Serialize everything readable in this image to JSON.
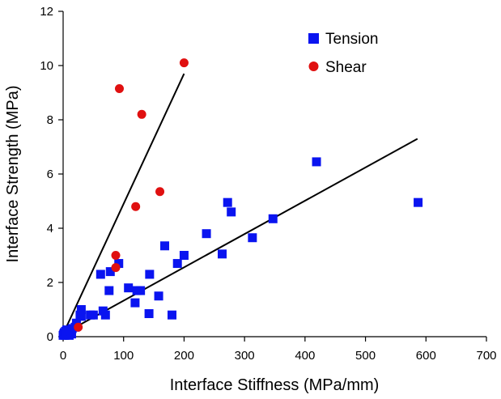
{
  "chart_data": {
    "type": "scatter",
    "title": "",
    "xlabel": "Interface Stiffness (MPa/mm)",
    "ylabel": "Interface Strength (MPa)",
    "xlim": [
      0,
      700
    ],
    "ylim": [
      0,
      12
    ],
    "xticks": [
      0,
      100,
      200,
      300,
      400,
      500,
      600,
      700
    ],
    "yticks": [
      0,
      2,
      4,
      6,
      8,
      10,
      12
    ],
    "grid": false,
    "legend_position": "top-right",
    "colors": {
      "tension": "#0a14f0",
      "shear": "#e01010",
      "axis": "#000000",
      "trendline": "#000000"
    },
    "series": [
      {
        "name": "Tension",
        "marker": "square",
        "points": [
          [
            0,
            0.05
          ],
          [
            1,
            0.1
          ],
          [
            2,
            0.15
          ],
          [
            3,
            0.05
          ],
          [
            4,
            0.2
          ],
          [
            5,
            0.1
          ],
          [
            6,
            0.25
          ],
          [
            8,
            0.15
          ],
          [
            10,
            0.05
          ],
          [
            12,
            0.2
          ],
          [
            14,
            0.1
          ],
          [
            15,
            0.3
          ],
          [
            20,
            0.35
          ],
          [
            22,
            0.5
          ],
          [
            28,
            0.8
          ],
          [
            30,
            0.75
          ],
          [
            30,
            1.0
          ],
          [
            45,
            0.8
          ],
          [
            50,
            0.8
          ],
          [
            62,
            2.3
          ],
          [
            66,
            0.95
          ],
          [
            70,
            0.8
          ],
          [
            76,
            1.7
          ],
          [
            78,
            2.4
          ],
          [
            92,
            2.7
          ],
          [
            108,
            1.8
          ],
          [
            119,
            1.25
          ],
          [
            122,
            1.7
          ],
          [
            128,
            1.7
          ],
          [
            142,
            0.85
          ],
          [
            143,
            2.3
          ],
          [
            158,
            1.5
          ],
          [
            168,
            3.35
          ],
          [
            180,
            0.8
          ],
          [
            189,
            2.7
          ],
          [
            200,
            3.0
          ],
          [
            237,
            3.8
          ],
          [
            263,
            3.05
          ],
          [
            272,
            4.95
          ],
          [
            278,
            4.6
          ],
          [
            313,
            3.65
          ],
          [
            347,
            4.35
          ],
          [
            419,
            6.45
          ],
          [
            587,
            4.95
          ]
        ],
        "trendline": {
          "x": [
            0,
            586
          ],
          "y": [
            0.1,
            7.3
          ]
        }
      },
      {
        "name": "Shear",
        "marker": "circle",
        "points": [
          [
            25,
            0.35
          ],
          [
            87,
            3.0
          ],
          [
            87,
            2.55
          ],
          [
            93,
            9.15
          ],
          [
            120,
            4.8
          ],
          [
            130,
            8.2
          ],
          [
            160,
            5.35
          ],
          [
            200,
            10.1
          ]
        ],
        "trendline": {
          "x": [
            0,
            200
          ],
          "y": [
            0.1,
            9.7
          ]
        }
      }
    ]
  }
}
